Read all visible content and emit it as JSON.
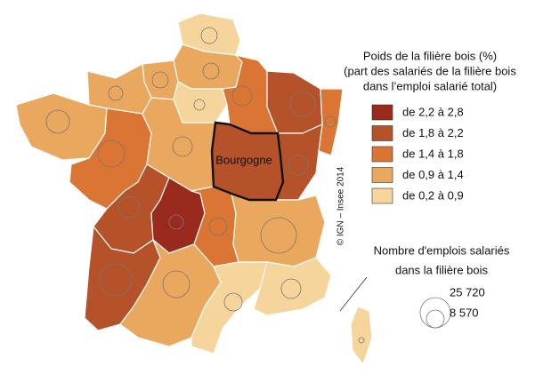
{
  "legend": {
    "title_lines": [
      "Poids de la filière bois (%)",
      "(part des salariés de la filière bois",
      "dans l’emploi salarié total)"
    ],
    "classes": [
      {
        "label": "de 2,2 à 2,8",
        "color": "#9b2a1e"
      },
      {
        "label": "de 1,8 à 2,2",
        "color": "#b5522a"
      },
      {
        "label": "de 1,4 à 1,8",
        "color": "#da7533"
      },
      {
        "label": "de 0,9 à 1,4",
        "color": "#e9a85e"
      },
      {
        "label": "de 0,2 à 0,9",
        "color": "#f5d59b"
      }
    ]
  },
  "map_label": "Bourgogne",
  "credit": "© IGN – Insee 2014",
  "size_legend": {
    "title_lines": [
      "Nombre d'emplois salariés",
      "dans la filière bois"
    ],
    "labels": [
      "25 720",
      "8 570"
    ]
  }
}
